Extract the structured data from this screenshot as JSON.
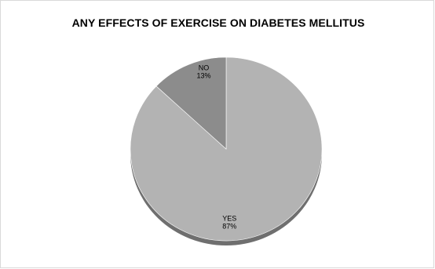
{
  "chart_data": {
    "type": "pie",
    "title": "ANY EFFECTS OF EXERCISE ON DIABETES MELLITUS",
    "slices": [
      {
        "label": "YES",
        "value": 87,
        "value_label": "87%",
        "color": "#b3b3b3"
      },
      {
        "label": "NO",
        "value": 13,
        "value_label": "13%",
        "color": "#8c8c8c"
      }
    ],
    "legend": "none",
    "style": "3d"
  }
}
